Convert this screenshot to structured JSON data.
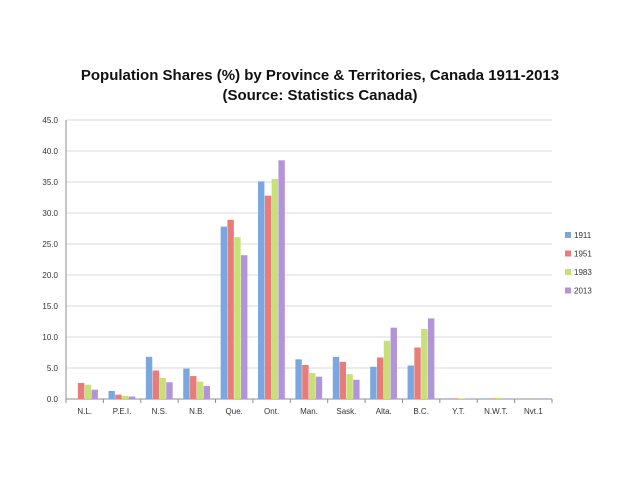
{
  "chart_data": {
    "type": "bar",
    "title": "Population Shares (%) by Province & Territories, Canada 1911-2013",
    "subtitle": "(Source: Statistics Canada)",
    "xlabel": "",
    "ylabel": "",
    "ylim": [
      0,
      45
    ],
    "yticks": [
      "0.0",
      "5.0",
      "10.0",
      "15.0",
      "20.0",
      "25.0",
      "30.0",
      "35.0",
      "40.0",
      "45.0"
    ],
    "grid": true,
    "legend_position": "right",
    "categories": [
      "N.L.",
      "P.E.I.",
      "N.S.",
      "N.B.",
      "Que.",
      "Ont.",
      "Man.",
      "Sask.",
      "Alta.",
      "B.C.",
      "Y.T.",
      "N.W.T.",
      "Nvt.1"
    ],
    "series": [
      {
        "name": "1911",
        "color": "#7aa7e0",
        "values": [
          0,
          1.3,
          6.8,
          4.9,
          27.8,
          35.1,
          6.4,
          6.8,
          5.2,
          5.4,
          0.1,
          0.1,
          0
        ]
      },
      {
        "name": "1951",
        "color": "#e87c78",
        "values": [
          2.6,
          0.7,
          4.6,
          3.7,
          28.9,
          32.8,
          5.5,
          6.0,
          6.7,
          8.3,
          0.1,
          0.1,
          0
        ]
      },
      {
        "name": "1983",
        "color": "#c8e07a",
        "values": [
          2.3,
          0.5,
          3.4,
          2.8,
          26.1,
          35.5,
          4.2,
          4.0,
          9.4,
          11.3,
          0.1,
          0.2,
          0
        ]
      },
      {
        "name": "2013",
        "color": "#b294d8",
        "values": [
          1.5,
          0.4,
          2.7,
          2.1,
          23.2,
          38.5,
          3.6,
          3.1,
          11.5,
          13.0,
          0.1,
          0.1,
          0.1
        ]
      }
    ]
  }
}
